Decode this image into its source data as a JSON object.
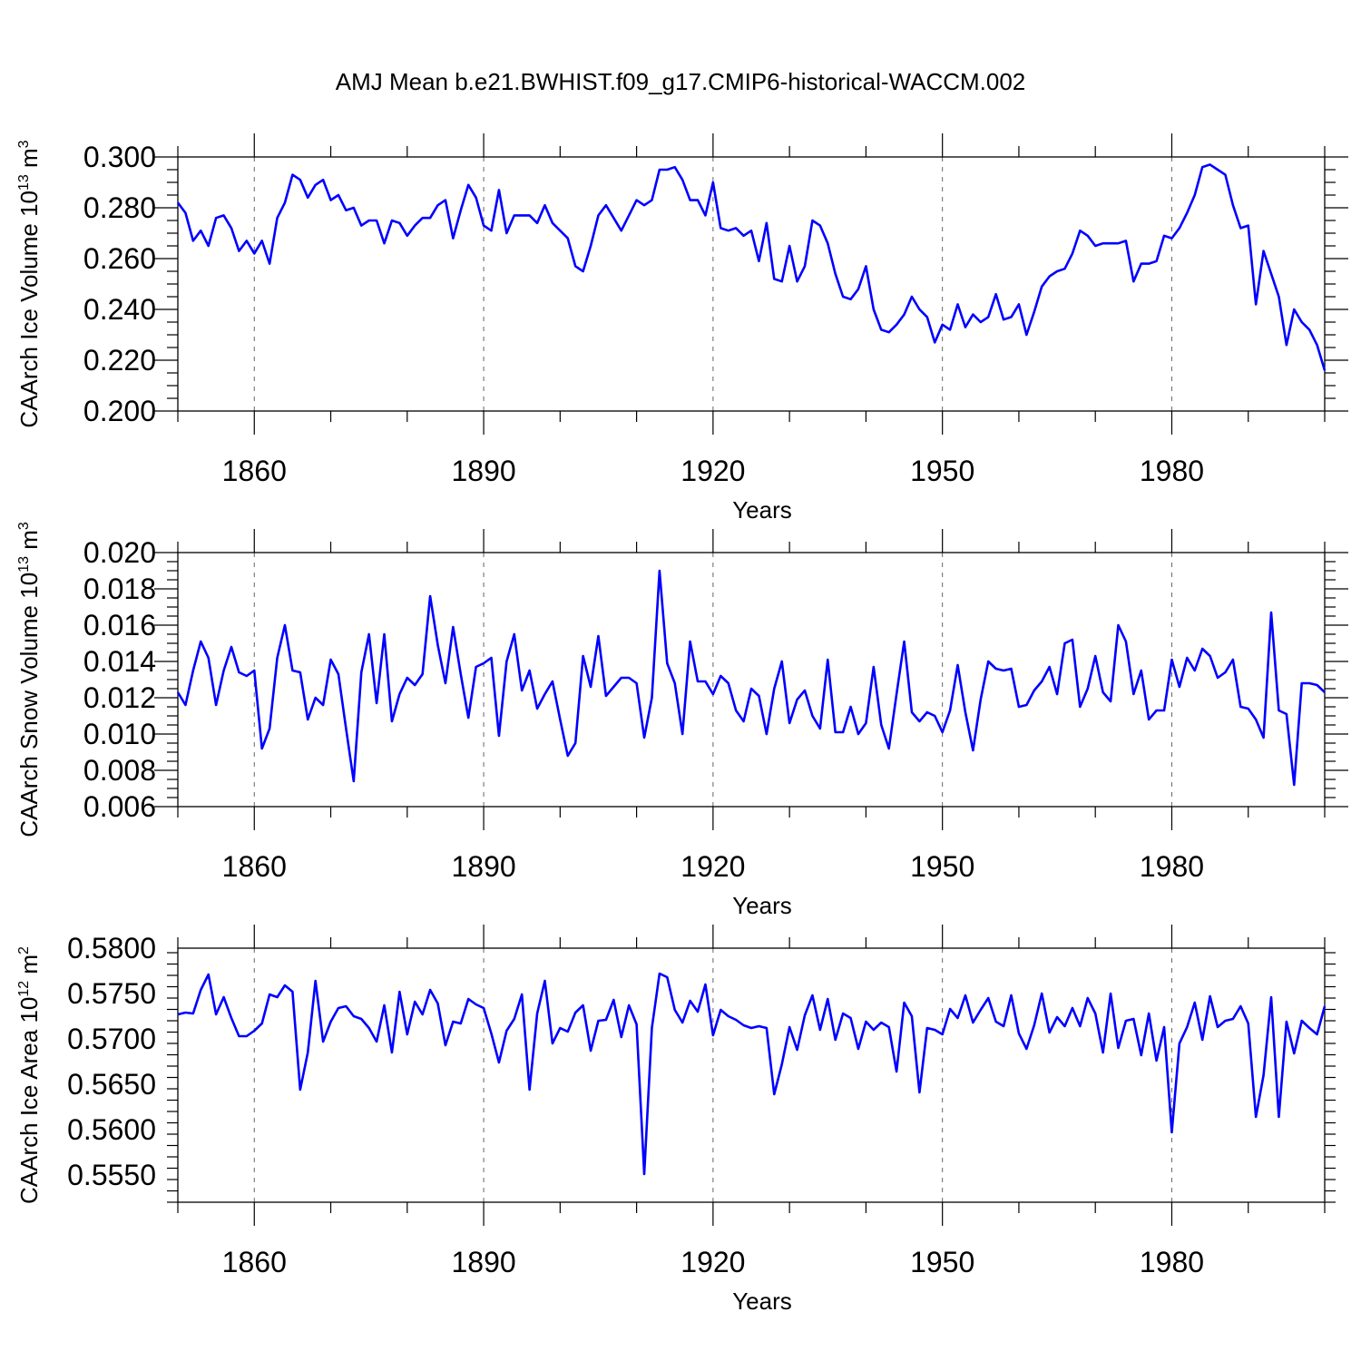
{
  "chart_data": {
    "title": "AMJ Mean b.e21.BWHIST.f09_g17.CMIP6-historical-WACCM.002",
    "line_color": "#0000ff",
    "x_start": 1850,
    "x_end": 2000,
    "xticks": [
      1860,
      1890,
      1920,
      1950,
      1980
    ],
    "xlabel": "Years",
    "panels": [
      {
        "type": "line",
        "ylabel": "CAArch Ice Volume 10",
        "ylabel_exp": "13",
        "ylabel_unit": " m",
        "ylabel_unit_exp": "3",
        "ylim": [
          0.2,
          0.3
        ],
        "yticks": [
          0.2,
          0.22,
          0.24,
          0.26,
          0.28,
          0.3
        ],
        "ytick_labels": [
          "0.200",
          "0.220",
          "0.240",
          "0.260",
          "0.280",
          "0.300"
        ],
        "values": [
          0.282,
          0.278,
          0.267,
          0.271,
          0.265,
          0.276,
          0.277,
          0.272,
          0.263,
          0.267,
          0.262,
          0.267,
          0.258,
          0.276,
          0.282,
          0.293,
          0.291,
          0.284,
          0.289,
          0.291,
          0.283,
          0.285,
          0.279,
          0.28,
          0.273,
          0.275,
          0.275,
          0.266,
          0.275,
          0.274,
          0.269,
          0.273,
          0.276,
          0.276,
          0.281,
          0.283,
          0.268,
          0.279,
          0.289,
          0.284,
          0.273,
          0.271,
          0.287,
          0.27,
          0.277,
          0.277,
          0.277,
          0.274,
          0.281,
          0.274,
          0.271,
          0.268,
          0.257,
          0.255,
          0.265,
          0.277,
          0.281,
          0.276,
          0.271,
          0.277,
          0.283,
          0.281,
          0.283,
          0.295,
          0.295,
          0.296,
          0.291,
          0.283,
          0.283,
          0.277,
          0.29,
          0.272,
          0.271,
          0.272,
          0.269,
          0.271,
          0.259,
          0.274,
          0.252,
          0.251,
          0.265,
          0.251,
          0.257,
          0.275,
          0.273,
          0.266,
          0.254,
          0.245,
          0.244,
          0.248,
          0.257,
          0.24,
          0.232,
          0.231,
          0.234,
          0.238,
          0.245,
          0.24,
          0.237,
          0.227,
          0.234,
          0.232,
          0.242,
          0.233,
          0.238,
          0.235,
          0.237,
          0.246,
          0.236,
          0.237,
          0.242,
          0.23,
          0.239,
          0.249,
          0.253,
          0.255,
          0.256,
          0.262,
          0.271,
          0.269,
          0.265,
          0.266,
          0.266,
          0.266,
          0.267,
          0.251,
          0.258,
          0.258,
          0.259,
          0.269,
          0.268,
          0.272,
          0.278,
          0.285,
          0.296,
          0.297,
          0.295,
          0.293,
          0.281,
          0.272,
          0.273,
          0.242,
          0.263,
          0.254,
          0.245,
          0.226,
          0.24,
          0.235,
          0.232,
          0.226,
          0.216
        ]
      },
      {
        "type": "line",
        "ylabel": "CAArch Snow Volume 10",
        "ylabel_exp": "13",
        "ylabel_unit": " m",
        "ylabel_unit_exp": "3",
        "ylim": [
          0.006,
          0.02
        ],
        "yticks": [
          0.006,
          0.008,
          0.01,
          0.012,
          0.014,
          0.016,
          0.018,
          0.02
        ],
        "ytick_labels": [
          "0.006",
          "0.008",
          "0.010",
          "0.012",
          "0.014",
          "0.016",
          "0.018",
          "0.020"
        ],
        "values": [
          0.0123,
          0.0116,
          0.0135,
          0.0151,
          0.0142,
          0.0116,
          0.0135,
          0.0148,
          0.0134,
          0.0132,
          0.0135,
          0.0092,
          0.0103,
          0.0142,
          0.016,
          0.0135,
          0.0134,
          0.0108,
          0.012,
          0.0116,
          0.0141,
          0.0133,
          0.0103,
          0.0074,
          0.0134,
          0.0155,
          0.0117,
          0.0155,
          0.0107,
          0.0122,
          0.0131,
          0.0127,
          0.0133,
          0.0176,
          0.0149,
          0.0128,
          0.0159,
          0.0133,
          0.0109,
          0.0137,
          0.0139,
          0.0142,
          0.0099,
          0.014,
          0.0155,
          0.0124,
          0.0135,
          0.0114,
          0.0122,
          0.0129,
          0.0108,
          0.0088,
          0.0095,
          0.0143,
          0.0126,
          0.0154,
          0.0121,
          0.0126,
          0.0131,
          0.0131,
          0.0128,
          0.0098,
          0.012,
          0.019,
          0.0139,
          0.0128,
          0.01,
          0.0151,
          0.0129,
          0.0129,
          0.0122,
          0.0132,
          0.0128,
          0.0113,
          0.0107,
          0.0125,
          0.0121,
          0.01,
          0.0125,
          0.014,
          0.0106,
          0.0119,
          0.0124,
          0.011,
          0.0103,
          0.0141,
          0.0101,
          0.0101,
          0.0115,
          0.01,
          0.0106,
          0.0137,
          0.0105,
          0.0092,
          0.0122,
          0.0151,
          0.0112,
          0.0107,
          0.0112,
          0.011,
          0.0101,
          0.0113,
          0.0138,
          0.0112,
          0.0091,
          0.0119,
          0.014,
          0.0136,
          0.0135,
          0.0136,
          0.0115,
          0.0116,
          0.0124,
          0.0129,
          0.0137,
          0.0122,
          0.015,
          0.0152,
          0.0115,
          0.0125,
          0.0143,
          0.0123,
          0.0118,
          0.016,
          0.0151,
          0.0122,
          0.0135,
          0.0108,
          0.0113,
          0.0113,
          0.0141,
          0.0126,
          0.0142,
          0.0135,
          0.0147,
          0.0143,
          0.0131,
          0.0134,
          0.0141,
          0.0115,
          0.0114,
          0.0108,
          0.0098,
          0.0167,
          0.0113,
          0.0111,
          0.0072,
          0.0128,
          0.0128,
          0.0127,
          0.0123
        ]
      },
      {
        "type": "line",
        "ylabel": "CAArch Ice Area 10",
        "ylabel_exp": "12",
        "ylabel_unit": " m",
        "ylabel_unit_exp": "2",
        "ylim": [
          0.552,
          0.58
        ],
        "yticks": [
          0.555,
          0.56,
          0.565,
          0.57,
          0.575,
          0.58
        ],
        "ytick_labels": [
          "0.5550",
          "0.5600",
          "0.5650",
          "0.5700",
          "0.5750",
          "0.5800"
        ],
        "values": [
          0.5727,
          0.5729,
          0.5728,
          0.5754,
          0.5771,
          0.5727,
          0.5746,
          0.5723,
          0.5703,
          0.5703,
          0.5709,
          0.5717,
          0.5749,
          0.5746,
          0.5759,
          0.5752,
          0.5644,
          0.5685,
          0.5764,
          0.5697,
          0.5719,
          0.5734,
          0.5736,
          0.5725,
          0.5722,
          0.5712,
          0.5697,
          0.5737,
          0.5685,
          0.5752,
          0.5705,
          0.5741,
          0.5727,
          0.5754,
          0.5739,
          0.5693,
          0.5719,
          0.5717,
          0.5744,
          0.5738,
          0.5734,
          0.5706,
          0.5674,
          0.5709,
          0.5722,
          0.5749,
          0.5644,
          0.5728,
          0.5764,
          0.5695,
          0.5712,
          0.5708,
          0.5729,
          0.5737,
          0.5687,
          0.572,
          0.5721,
          0.5743,
          0.5702,
          0.5737,
          0.5716,
          0.5551,
          0.5712,
          0.5772,
          0.5768,
          0.5732,
          0.5718,
          0.5742,
          0.573,
          0.576,
          0.5704,
          0.5732,
          0.5725,
          0.5721,
          0.5715,
          0.5712,
          0.5714,
          0.5712,
          0.5639,
          0.5672,
          0.5713,
          0.5688,
          0.5726,
          0.5748,
          0.571,
          0.5744,
          0.5699,
          0.5728,
          0.5723,
          0.5689,
          0.5719,
          0.571,
          0.5718,
          0.5713,
          0.5664,
          0.574,
          0.5725,
          0.5641,
          0.5712,
          0.571,
          0.5705,
          0.5733,
          0.5723,
          0.5748,
          0.5718,
          0.5732,
          0.5745,
          0.5719,
          0.5714,
          0.5748,
          0.5706,
          0.5689,
          0.5715,
          0.575,
          0.5707,
          0.5724,
          0.5714,
          0.5734,
          0.5714,
          0.5745,
          0.5728,
          0.5685,
          0.575,
          0.569,
          0.572,
          0.5722,
          0.5682,
          0.5728,
          0.5676,
          0.5713,
          0.5597,
          0.5695,
          0.5713,
          0.574,
          0.5699,
          0.5747,
          0.5713,
          0.572,
          0.5722,
          0.5736,
          0.5717,
          0.5614,
          0.566,
          0.5746,
          0.5614,
          0.5719,
          0.5684,
          0.572,
          0.5712,
          0.5705,
          0.5736
        ]
      }
    ]
  }
}
